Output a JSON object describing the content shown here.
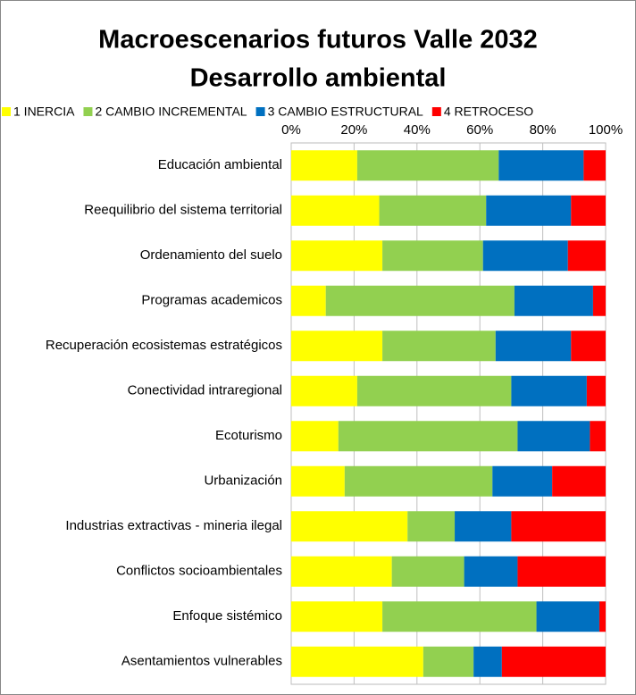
{
  "chart_data": {
    "type": "stacked_bar_horizontal",
    "title": [
      "Macroescenarios futuros Valle  2032",
      "Desarrollo ambiental"
    ],
    "categories": [
      "Educación ambiental",
      "Reequilibrio del sistema territorial",
      "Ordenamiento del suelo",
      "Programas academicos",
      "Recuperación ecosistemas estratégicos",
      "Conectividad intraregional",
      "Ecoturismo",
      "Urbanización",
      "Industrias extractivas - mineria ilegal",
      "Conflictos socioambientales",
      "Enfoque sistémico",
      "Asentamientos vulnerables"
    ],
    "series": [
      {
        "name": "1 INERCIA",
        "color": "#ffff00",
        "values": [
          21,
          28,
          29,
          11,
          29,
          21,
          15,
          17,
          37,
          32,
          29,
          42
        ]
      },
      {
        "name": "2 CAMBIO INCREMENTAL",
        "color": "#92d050",
        "values": [
          45,
          34,
          32,
          60,
          36,
          49,
          57,
          47,
          15,
          23,
          49,
          16
        ]
      },
      {
        "name": "3 CAMBIO ESTRUCTURAL",
        "color": "#0070c0",
        "values": [
          27,
          27,
          27,
          25,
          24,
          24,
          23,
          19,
          18,
          17,
          20,
          9
        ]
      },
      {
        "name": "4 RETROCESO",
        "color": "#ff0000",
        "values": [
          7,
          11,
          12,
          4,
          11,
          6,
          5,
          17,
          30,
          28,
          2,
          33
        ]
      }
    ],
    "xlim": [
      0,
      100
    ],
    "xticks": [
      {
        "value": 0,
        "label": "0%"
      },
      {
        "value": 20,
        "label": "20%"
      },
      {
        "value": 40,
        "label": "40%"
      },
      {
        "value": 60,
        "label": "60%"
      },
      {
        "value": 80,
        "label": "80%"
      },
      {
        "value": 100,
        "label": "100%"
      }
    ],
    "grid": true,
    "legend": "top"
  }
}
